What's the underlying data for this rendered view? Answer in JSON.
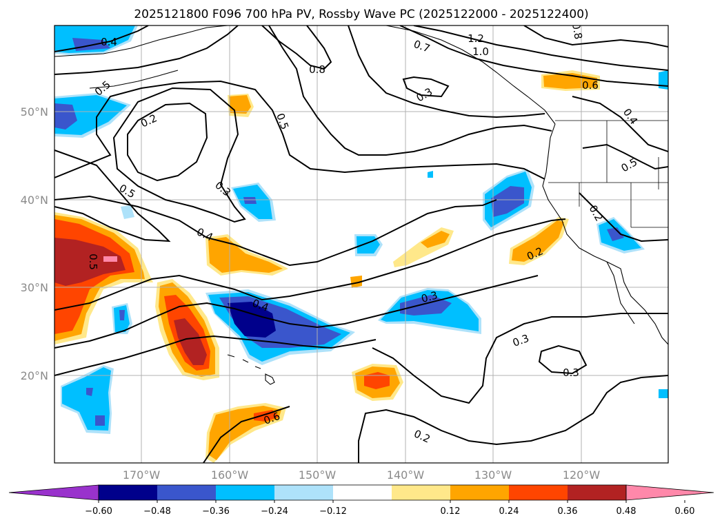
{
  "title": "2025121800 F096 700 hPa PV, Rossby Wave PC (2025122000 - 2025122400)",
  "lat_labels": [
    "50°N",
    "40°N",
    "30°N",
    "20°N"
  ],
  "lon_labels": [
    "170°W",
    "160°W",
    "150°W",
    "140°W",
    "130°W",
    "120°W"
  ],
  "colorbar": {
    "ticks": [
      "−0.60",
      "−0.48",
      "−0.36",
      "−0.24",
      "−0.12",
      "0.12",
      "0.24",
      "0.36",
      "0.48",
      "0.60"
    ],
    "colors": [
      "#9932cc",
      "#00008b",
      "#3a56cc",
      "#00bfff",
      "#aee2fa",
      "#ffffff",
      "#ffe88a",
      "#ffa500",
      "#ff4500",
      "#b22222",
      "#ff88aa"
    ]
  },
  "contour_labels": [
    "0.4",
    "0.5",
    "0.2",
    "0.5",
    "0.3",
    "0.4",
    "0.5",
    "0.8",
    "0.5",
    "0.7",
    "1.2",
    "1.0",
    "0.3",
    "0.8",
    "0.6",
    "0.4",
    "0.5",
    "0.2",
    "0.4",
    "0.3",
    "0.2",
    "0.3",
    "0.3",
    "0.2",
    "0.6"
  ]
}
